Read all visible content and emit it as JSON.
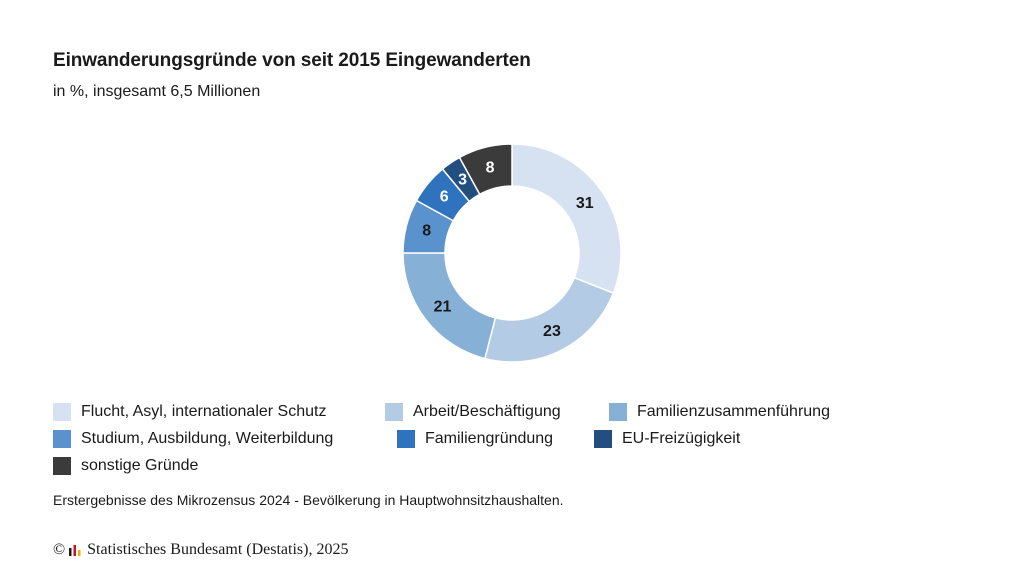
{
  "chart_data": {
    "type": "pie",
    "title": "Einwanderungsgründe von seit 2015 Eingewanderten",
    "subtitle": "in %, insgesamt 6,5 Millionen",
    "categories": [
      "Flucht, Asyl, internationaler Schutz",
      "Arbeit/Beschäftigung",
      "Familienzusammenführung",
      "Studium, Ausbildung, Weiterbildung",
      "Familiengründung",
      "EU-Freizügigkeit",
      "sonstige Gründe"
    ],
    "values": [
      31,
      23,
      21,
      8,
      6,
      3,
      8
    ],
    "colors": [
      "#d6e1f1",
      "#b3cbe5",
      "#86b0d6",
      "#5a92cd",
      "#2f72bd",
      "#234f80",
      "#3b3b3b"
    ],
    "label_colors": [
      "#1a1a1a",
      "#1a1a1a",
      "#1a1a1a",
      "#1a1a1a",
      "#ffffff",
      "#ffffff",
      "#ffffff"
    ],
    "donut": true,
    "legend_position": "bottom"
  },
  "note": "Erstergebnisse des Mikrozensus 2024 - Bevölkerung in Hauptwohnsitzhaushalten.",
  "footer": {
    "copyright_symbol": "©",
    "source": "Statistisches Bundesamt (Destatis), 2025"
  }
}
